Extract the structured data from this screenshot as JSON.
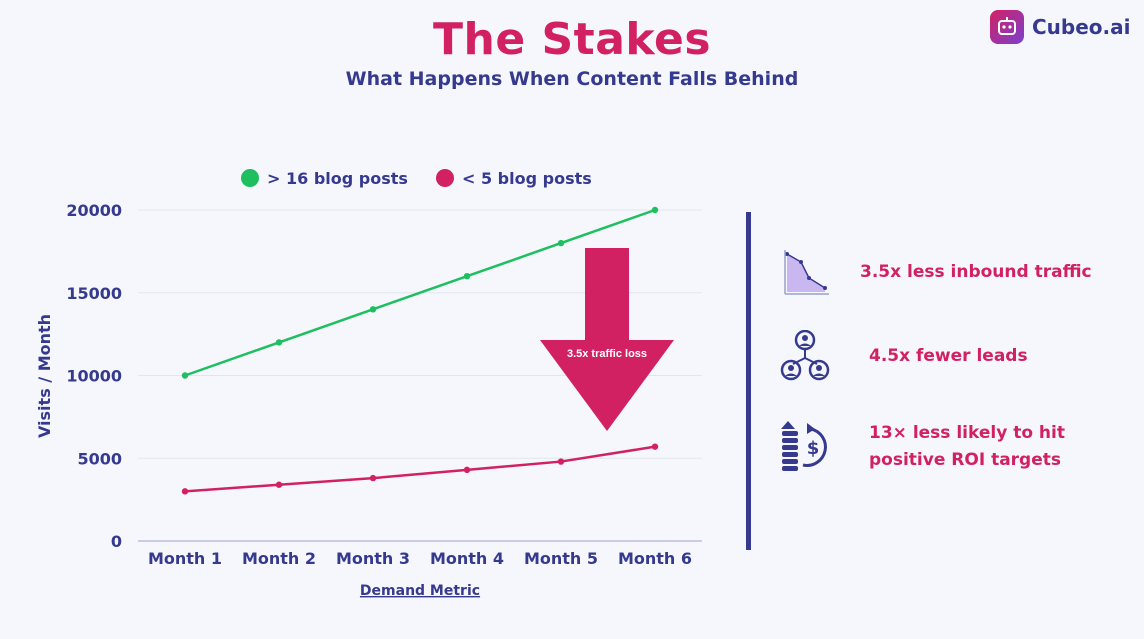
{
  "header": {
    "title": "The Stakes",
    "subtitle": "What Happens When Content Falls Behind",
    "brand": "Cubeo.ai"
  },
  "colors": {
    "accent": "#d22163",
    "navy": "#363a8f",
    "green": "#1dbf5f",
    "background": "#f5f7fc"
  },
  "chart_data": {
    "type": "line",
    "categories": [
      "Month 1",
      "Month 2",
      "Month 3",
      "Month 4",
      "Month 5",
      "Month 6"
    ],
    "series": [
      {
        "name": "> 16 blog posts",
        "color": "#1dbf5f",
        "values": [
          10000,
          12000,
          14000,
          16000,
          18000,
          20000
        ]
      },
      {
        "name": "< 5 blog posts",
        "color": "#d22163",
        "values": [
          3000,
          3400,
          3800,
          4300,
          4800,
          5700
        ]
      }
    ],
    "yticks": [
      0,
      5000,
      10000,
      15000,
      20000
    ],
    "ylim": [
      0,
      20000
    ],
    "ylabel": "Visits / Month",
    "xlabel": "Demand Metric",
    "legend_position": "top",
    "grid": true,
    "annotation": "3.5x traffic loss"
  },
  "stats": [
    {
      "icon": "declining-chart-icon",
      "text": "3.5x less inbound traffic"
    },
    {
      "icon": "people-network-icon",
      "text": "4.5x fewer leads"
    },
    {
      "icon": "roi-growth-icon",
      "text": "13× less likely to hit\npositive ROI targets"
    }
  ]
}
